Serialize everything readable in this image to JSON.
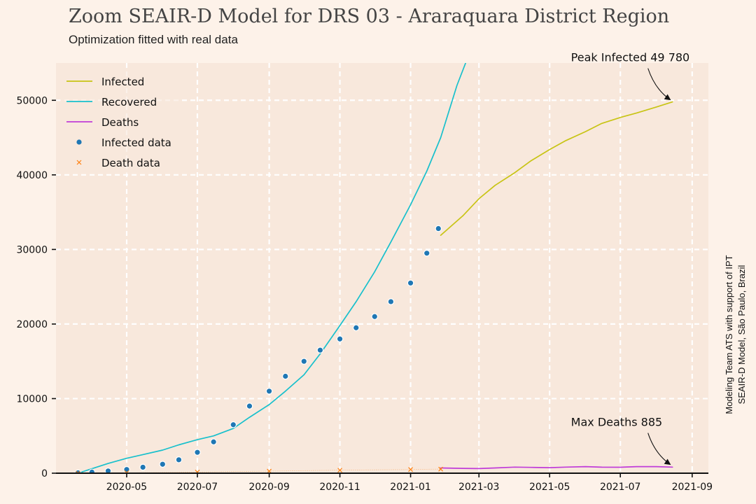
{
  "title": "Zoom SEAIR-D Model for DRS 03 - Araraquara District Region",
  "subtitle": "Optimization fitted with real data",
  "credit_line1": "Modeling Team ATS with support of IPT",
  "credit_line2": "SEAIR-D Model, São Paulo, Brazil",
  "colors": {
    "background": "#fdf2e9",
    "plot_bg": "#f8e8dc",
    "infected": "#c8c414",
    "recovered": "#18c0cc",
    "deaths": "#c03cd8",
    "infected_data": "#1f77b4",
    "death_data": "#ff7f0e"
  },
  "chart_data": {
    "type": "line",
    "x_axis": {
      "type": "date",
      "range": [
        "2020-03-01",
        "2021-09-15"
      ],
      "ticks": [
        "2020-05",
        "2020-07",
        "2020-09",
        "2020-11",
        "2021-01",
        "2021-03",
        "2021-05",
        "2021-07",
        "2021-09"
      ]
    },
    "y_axis": {
      "range": [
        0,
        55000
      ],
      "ticks": [
        0,
        10000,
        20000,
        30000,
        40000,
        50000
      ]
    },
    "grid": true,
    "legend_placement": "top-left",
    "legend": [
      "Infected",
      "Recovered",
      "Deaths",
      "Infected data",
      "Death data"
    ],
    "series": [
      {
        "name": "Infected",
        "style": "line",
        "x": [
          "2021-01-27",
          "2021-02-15",
          "2021-03-01",
          "2021-03-15",
          "2021-04-01",
          "2021-04-15",
          "2021-05-01",
          "2021-05-15",
          "2021-06-01",
          "2021-06-15",
          "2021-07-01",
          "2021-07-15",
          "2021-08-01",
          "2021-08-15"
        ],
        "y": [
          31900,
          34500,
          36800,
          38600,
          40300,
          41900,
          43400,
          44600,
          45800,
          46900,
          47700,
          48300,
          49100,
          49780
        ]
      },
      {
        "name": "Recovered",
        "style": "line",
        "x": [
          "2020-03-20",
          "2020-04-01",
          "2020-04-15",
          "2020-05-01",
          "2020-05-15",
          "2020-06-01",
          "2020-06-15",
          "2020-07-01",
          "2020-07-15",
          "2020-08-01",
          "2020-08-15",
          "2020-09-01",
          "2020-09-15",
          "2020-10-01",
          "2020-10-15",
          "2020-11-01",
          "2020-11-15",
          "2020-12-01",
          "2020-12-15",
          "2021-01-01",
          "2021-01-15",
          "2021-01-27",
          "2021-02-10",
          "2021-02-20"
        ],
        "y": [
          0,
          600,
          1300,
          2000,
          2500,
          3100,
          3800,
          4500,
          5000,
          6000,
          7500,
          9200,
          11000,
          13200,
          16000,
          19800,
          23000,
          27000,
          31000,
          36000,
          40500,
          45000,
          52000,
          56000
        ]
      },
      {
        "name": "Deaths",
        "style": "line",
        "x": [
          "2021-01-27",
          "2021-02-15",
          "2021-03-01",
          "2021-03-15",
          "2021-04-01",
          "2021-04-15",
          "2021-05-01",
          "2021-05-15",
          "2021-06-01",
          "2021-06-15",
          "2021-07-01",
          "2021-07-15",
          "2021-08-01",
          "2021-08-15"
        ],
        "y": [
          700,
          650,
          620,
          700,
          820,
          780,
          740,
          820,
          880,
          810,
          800,
          880,
          885,
          820
        ]
      },
      {
        "name": "Infected data",
        "style": "scatter",
        "x": [
          "2020-03-20",
          "2020-04-01",
          "2020-04-15",
          "2020-05-01",
          "2020-05-15",
          "2020-06-01",
          "2020-06-15",
          "2020-07-01",
          "2020-07-15",
          "2020-08-01",
          "2020-08-15",
          "2020-09-01",
          "2020-09-15",
          "2020-10-01",
          "2020-10-15",
          "2020-11-01",
          "2020-11-15",
          "2020-12-01",
          "2020-12-15",
          "2021-01-01",
          "2021-01-15",
          "2021-01-25"
        ],
        "y": [
          50,
          150,
          300,
          500,
          800,
          1200,
          1800,
          2800,
          4200,
          6500,
          9000,
          11000,
          13000,
          15000,
          16500,
          18000,
          19500,
          21000,
          23000,
          25500,
          29500,
          32800
        ]
      },
      {
        "name": "Death data",
        "style": "scatter",
        "x": [
          "2020-03-20",
          "2020-05-01",
          "2020-07-01",
          "2020-09-01",
          "2020-11-01",
          "2021-01-01",
          "2021-01-27"
        ],
        "y": [
          0,
          50,
          150,
          280,
          400,
          500,
          550
        ]
      }
    ],
    "annotations": [
      {
        "text": "Peak Infected 49 780",
        "x": "2021-08-15",
        "y": 49780
      },
      {
        "text": "Max Deaths 885",
        "x": "2021-08-15",
        "y": 885
      }
    ]
  }
}
